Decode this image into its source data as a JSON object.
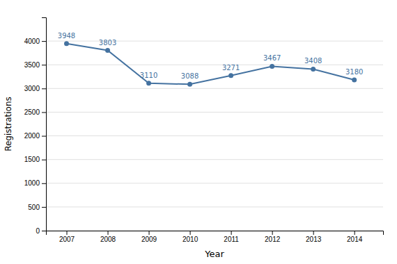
{
  "chart_data": {
    "type": "line",
    "x": [
      2007,
      2008,
      2009,
      2010,
      2011,
      2012,
      2013,
      2014
    ],
    "values": [
      3948,
      3803,
      3110,
      3088,
      3271,
      3467,
      3408,
      3180
    ],
    "color": "#4472A0",
    "marker": "circle",
    "xlabel": "Year",
    "ylabel": "Registrations",
    "xlim": [
      2006.5,
      2014.7
    ],
    "ylim": [
      0,
      4500
    ],
    "xticks": [
      2007,
      2008,
      2009,
      2010,
      2011,
      2012,
      2013,
      2014
    ],
    "yticks": [
      0,
      500,
      1000,
      1500,
      2000,
      2500,
      3000,
      3500,
      4000
    ],
    "grid": true,
    "data_labels": true
  }
}
